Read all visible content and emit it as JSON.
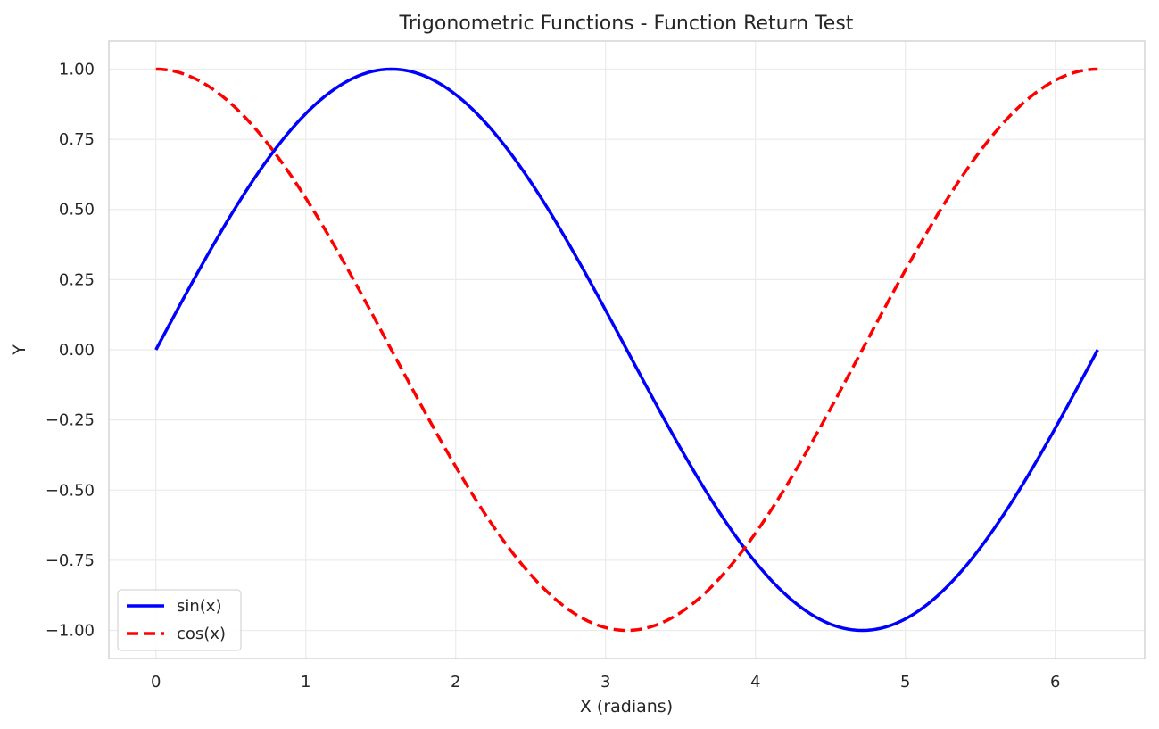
{
  "chart_data": {
    "type": "line",
    "title": "Trigonometric Functions - Function Return Test",
    "xlabel": "X (radians)",
    "ylabel": "Y",
    "xlim": [
      -0.314,
      6.597
    ],
    "ylim": [
      -1.1,
      1.1
    ],
    "x_ticks": [
      0,
      1,
      2,
      3,
      4,
      5,
      6
    ],
    "x_tick_labels": [
      "0",
      "1",
      "2",
      "3",
      "4",
      "5",
      "6"
    ],
    "y_ticks": [
      1.0,
      0.75,
      0.5,
      0.25,
      0.0,
      -0.25,
      -0.5,
      -0.75,
      -1.0
    ],
    "y_tick_labels": [
      "1.00",
      "0.75",
      "0.50",
      "0.25",
      "0.00",
      "−0.25",
      "−0.50",
      "−0.75",
      "−1.00"
    ],
    "grid": true,
    "legend_position": "lower-left",
    "x": [
      0,
      0.3307,
      0.6614,
      0.9921,
      1.3228,
      1.6535,
      1.9842,
      2.3149,
      2.6456,
      2.9762,
      3.3069,
      3.6376,
      3.9683,
      4.299,
      4.6297,
      4.9604,
      5.2911,
      5.6218,
      5.9525,
      6.2832
    ],
    "series": [
      {
        "name": "sin(x)",
        "color": "#0000ff",
        "style": "solid",
        "values": [
          0.0,
          0.3247,
          0.6142,
          0.8372,
          0.9694,
          0.9966,
          0.9158,
          0.7357,
          0.4759,
          0.1646,
          -0.1646,
          -0.4759,
          -0.7357,
          -0.9158,
          -0.9966,
          -0.9694,
          -0.8372,
          -0.6142,
          -0.3247,
          0.0
        ]
      },
      {
        "name": "cos(x)",
        "color": "#ff0000",
        "style": "dashed",
        "values": [
          1.0,
          0.9458,
          0.7891,
          0.5469,
          0.2455,
          -0.0826,
          -0.4017,
          -0.6773,
          -0.8795,
          -0.9864,
          -0.9864,
          -0.8795,
          -0.6773,
          -0.4017,
          -0.0826,
          0.2455,
          0.5469,
          0.7891,
          0.9458,
          1.0
        ]
      }
    ]
  }
}
